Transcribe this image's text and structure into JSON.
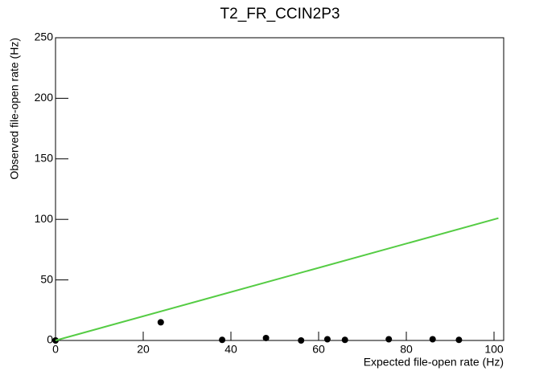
{
  "chart_data": {
    "type": "scatter",
    "title": "T2_FR_CCIN2P3",
    "x_label": "Expected file-open rate (Hz)",
    "y_label": "Observed file-open rate (Hz)",
    "series": [
      {
        "color": "#000000",
        "x": [
          0,
          24,
          38,
          48,
          56,
          62,
          66,
          76,
          86,
          92
        ],
        "values": [
          0,
          15,
          0.5,
          2,
          0,
          1,
          0.5,
          1,
          1,
          0.5
        ]
      },
      {
        "color": "#55cc44",
        "type": "line",
        "x": [
          0,
          101
        ],
        "values": [
          0,
          101
        ]
      }
    ],
    "xlim": [
      0,
      102.2
    ],
    "ylim": [
      0,
      250
    ],
    "xticks": [
      0,
      20,
      40,
      60,
      80,
      100
    ],
    "yticks": [
      0,
      50,
      100,
      150,
      200,
      250
    ]
  }
}
